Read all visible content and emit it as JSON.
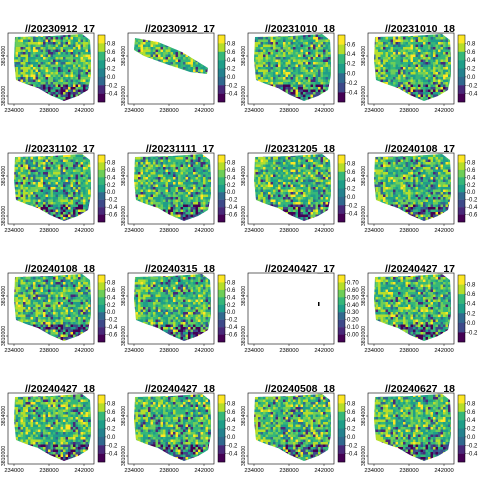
{
  "chart_data": [
    {
      "type": "heatmap",
      "title": "//20230912_17",
      "xticks": [
        "234000",
        "238000",
        "242000"
      ],
      "yticks": [
        "3810000",
        "3814000"
      ],
      "legend_ticks": [
        "0.8",
        "0.6",
        "0.4",
        "0.2",
        "0.0",
        "-0.2",
        "-0.4"
      ],
      "colorscale": "viridis",
      "map": "full"
    },
    {
      "type": "heatmap",
      "title": "//20230912_17",
      "xticks": [
        "234000",
        "238000",
        "242000"
      ],
      "yticks": [
        "3810000",
        "3814000"
      ],
      "legend_ticks": [
        "0.8",
        "0.6",
        "0.4",
        "0.2",
        "0.0",
        "-0.2",
        "-0.4"
      ],
      "colorscale": "viridis",
      "map": "strip"
    },
    {
      "type": "heatmap",
      "title": "//20231010_18",
      "xticks": [
        "234000",
        "238000",
        "242000"
      ],
      "yticks": [
        "3810000",
        "3814000"
      ],
      "legend_ticks": [
        "0.6",
        "0.4",
        "0.2",
        "0.0",
        "-0.2",
        "-0.4"
      ],
      "colorscale": "viridis",
      "map": "full"
    },
    {
      "type": "heatmap",
      "title": "//20231010_18",
      "xticks": [
        "234000",
        "238000",
        "242000"
      ],
      "yticks": [
        "3810000",
        "3814000"
      ],
      "legend_ticks": [
        "0.8",
        "0.6",
        "0.4",
        "0.2",
        "0.0",
        "-0.2",
        "-0.4"
      ],
      "colorscale": "viridis",
      "map": "full"
    },
    {
      "type": "heatmap",
      "title": "//20231102_17",
      "xticks": [
        "234000",
        "238000",
        "242000"
      ],
      "yticks": [
        "3810000",
        "3814000"
      ],
      "legend_ticks": [
        "0.8",
        "0.6",
        "0.4",
        "0.2",
        "0.0",
        "-0.2",
        "-0.4",
        "-0.6"
      ],
      "colorscale": "viridis",
      "map": "full"
    },
    {
      "type": "heatmap",
      "title": "//20231111_17",
      "xticks": [
        "234000",
        "238000",
        "242000"
      ],
      "yticks": [
        "3810000",
        "3814000"
      ],
      "legend_ticks": [
        "0.8",
        "0.6",
        "0.4",
        "0.2",
        "0.0",
        "-0.2",
        "-0.4",
        "-0.6"
      ],
      "colorscale": "viridis",
      "map": "full"
    },
    {
      "type": "heatmap",
      "title": "//20231205_18",
      "xticks": [
        "234000",
        "238000",
        "242000"
      ],
      "yticks": [
        "3810000",
        "3814000"
      ],
      "legend_ticks": [
        "0.8",
        "0.6",
        "0.4",
        "0.2",
        "0.0",
        "-0.2",
        "-0.4"
      ],
      "colorscale": "viridis",
      "map": "full"
    },
    {
      "type": "heatmap",
      "title": "//20240108_17",
      "xticks": [
        "234000",
        "238000",
        "242000"
      ],
      "yticks": [
        "3810000",
        "3814000"
      ],
      "legend_ticks": [
        "0.8",
        "0.6",
        "0.4",
        "0.2",
        "0.0",
        "-0.2",
        "-0.4",
        "-0.6"
      ],
      "colorscale": "viridis",
      "map": "full"
    },
    {
      "type": "heatmap",
      "title": "//20240108_18",
      "xticks": [
        "234000",
        "238000",
        "242000"
      ],
      "yticks": [
        "3810000",
        "3814000"
      ],
      "legend_ticks": [
        "0.8",
        "0.6",
        "0.4",
        "0.2",
        "0.0",
        "-0.2",
        "-0.4",
        "-0.6"
      ],
      "colorscale": "viridis",
      "map": "full"
    },
    {
      "type": "heatmap",
      "title": "//20240315_18",
      "xticks": [
        "234000",
        "238000",
        "242000"
      ],
      "yticks": [
        "3810000",
        "3814000"
      ],
      "legend_ticks": [
        "0.8",
        "0.6",
        "0.4",
        "0.2",
        "0.0",
        "-0.2",
        "-0.4",
        "-0.6"
      ],
      "colorscale": "viridis",
      "map": "full"
    },
    {
      "type": "heatmap",
      "title": "//20240427_17",
      "xticks": [
        "234000",
        "238000",
        "242000"
      ],
      "yticks": [
        "3810000",
        "3814000"
      ],
      "legend_ticks": [
        "0.70",
        "0.60",
        "0.50",
        "0.40",
        "0.30",
        "0.20",
        "0.10",
        "0.00"
      ],
      "colorscale": "viridis",
      "map": "speck"
    },
    {
      "type": "heatmap",
      "title": "//20240427_17",
      "xticks": [
        "234000",
        "238000",
        "242000"
      ],
      "yticks": [
        "3810000",
        "3814000"
      ],
      "legend_ticks": [
        "0.8",
        "0.6",
        "0.4",
        "0.2",
        "0.0",
        "-0.2"
      ],
      "colorscale": "viridis",
      "map": "full"
    },
    {
      "type": "heatmap",
      "title": "//20240427_18",
      "xticks": [
        "234000",
        "238000",
        "242000"
      ],
      "yticks": [
        "3810000",
        "3814000"
      ],
      "legend_ticks": [
        "0.8",
        "0.6",
        "0.4",
        "0.2",
        "0.0",
        "-0.2",
        "-0.4"
      ],
      "colorscale": "viridis",
      "map": "full"
    },
    {
      "type": "heatmap",
      "title": "//20240427_18",
      "xticks": [
        "234000",
        "238000",
        "242000"
      ],
      "yticks": [
        "3810000",
        "3814000"
      ],
      "legend_ticks": [
        "0.8",
        "0.6",
        "0.4",
        "0.2",
        "0.0",
        "-0.2",
        "-0.4"
      ],
      "colorscale": "viridis",
      "map": "full"
    },
    {
      "type": "heatmap",
      "title": "//20240508_18",
      "xticks": [
        "234000",
        "238000",
        "242000"
      ],
      "yticks": [
        "3810000",
        "3814000"
      ],
      "legend_ticks": [
        "0.8",
        "0.6",
        "0.4",
        "0.2",
        "0.0",
        "-0.2",
        "-0.4"
      ],
      "colorscale": "viridis",
      "map": "full"
    },
    {
      "type": "heatmap",
      "title": "//20240627_18",
      "xticks": [
        "234000",
        "238000",
        "242000"
      ],
      "yticks": [
        "3810000",
        "3814000"
      ],
      "legend_ticks": [
        "0.8",
        "0.6",
        "0.4",
        "0.2",
        "0.0",
        "-0.2",
        "-0.4"
      ],
      "colorscale": "viridis",
      "map": "full"
    }
  ]
}
